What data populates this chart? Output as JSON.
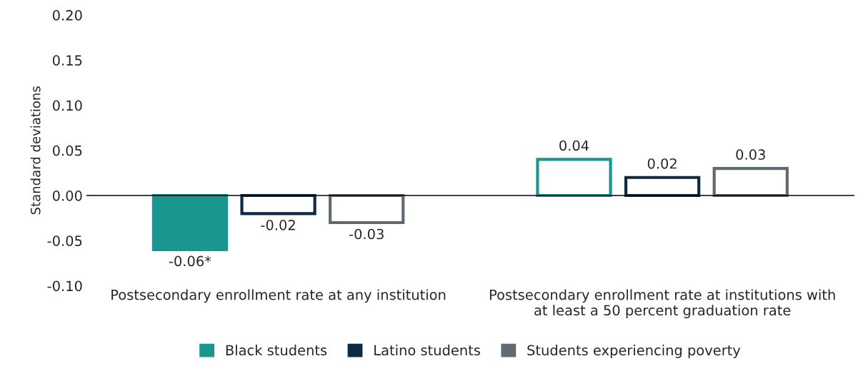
{
  "chart_data": {
    "type": "bar",
    "ylabel": "Standard deviations",
    "categories": [
      "Postsecondary enrollment rate at any institution",
      "Postsecondary enrollment rate at institutions with\nat least a 50 percent graduation rate"
    ],
    "series": [
      {
        "name": "Black students",
        "color": "#1a9690",
        "colors": [
          "#1a9690",
          "#ffffff"
        ],
        "values": [
          -0.06,
          0.04
        ],
        "value_labels": [
          "-0.06*",
          "0.04"
        ]
      },
      {
        "name": "Latino students",
        "color": "#0d2a45",
        "colors": [
          "#ffffff",
          "#ffffff"
        ],
        "values": [
          -0.02,
          0.02
        ],
        "value_labels": [
          "-0.02",
          "0.02"
        ]
      },
      {
        "name": "Students experiencing poverty",
        "color": "#5f6a72",
        "colors": [
          "#ffffff",
          "#ffffff"
        ],
        "values": [
          -0.03,
          0.03
        ],
        "value_labels": [
          "-0.03",
          "0.03"
        ]
      }
    ],
    "ylim": [
      -0.1,
      0.2
    ],
    "yticks": [
      {
        "value": -0.1,
        "label": "-0.10"
      },
      {
        "value": -0.05,
        "label": "-0.05"
      },
      {
        "value": 0,
        "label": "0.00"
      },
      {
        "value": 0.05,
        "label": "0.05"
      },
      {
        "value": 0.1,
        "label": "0.10"
      },
      {
        "value": 0.15,
        "label": "0.15"
      },
      {
        "value": 0.2,
        "label": "0.20"
      }
    ],
    "ref_lines": [
      {
        "axis": "y",
        "value": 0,
        "color": "#000000"
      }
    ],
    "grid": false,
    "legend": "bottom"
  }
}
